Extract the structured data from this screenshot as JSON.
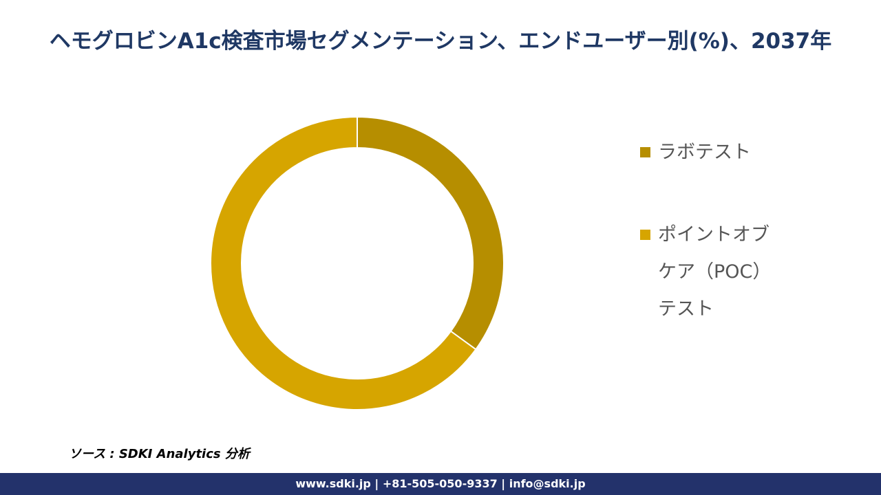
{
  "chart_data": {
    "type": "donut",
    "title": "ヘモグロビンA1c検査市場セグメンテーション、エンドユーザー別(%)、2037年",
    "categories": [
      "ラボテスト",
      "ポイントオブケア（POC）テスト"
    ],
    "values": [
      35,
      65
    ],
    "colors": [
      "#b68e00",
      "#d6a500"
    ],
    "legend": "right"
  },
  "source": "ソース : SDKI Analytics 分析",
  "footer": "www.sdki.jp | +81-505-050-9337 | info@sdki.jp"
}
